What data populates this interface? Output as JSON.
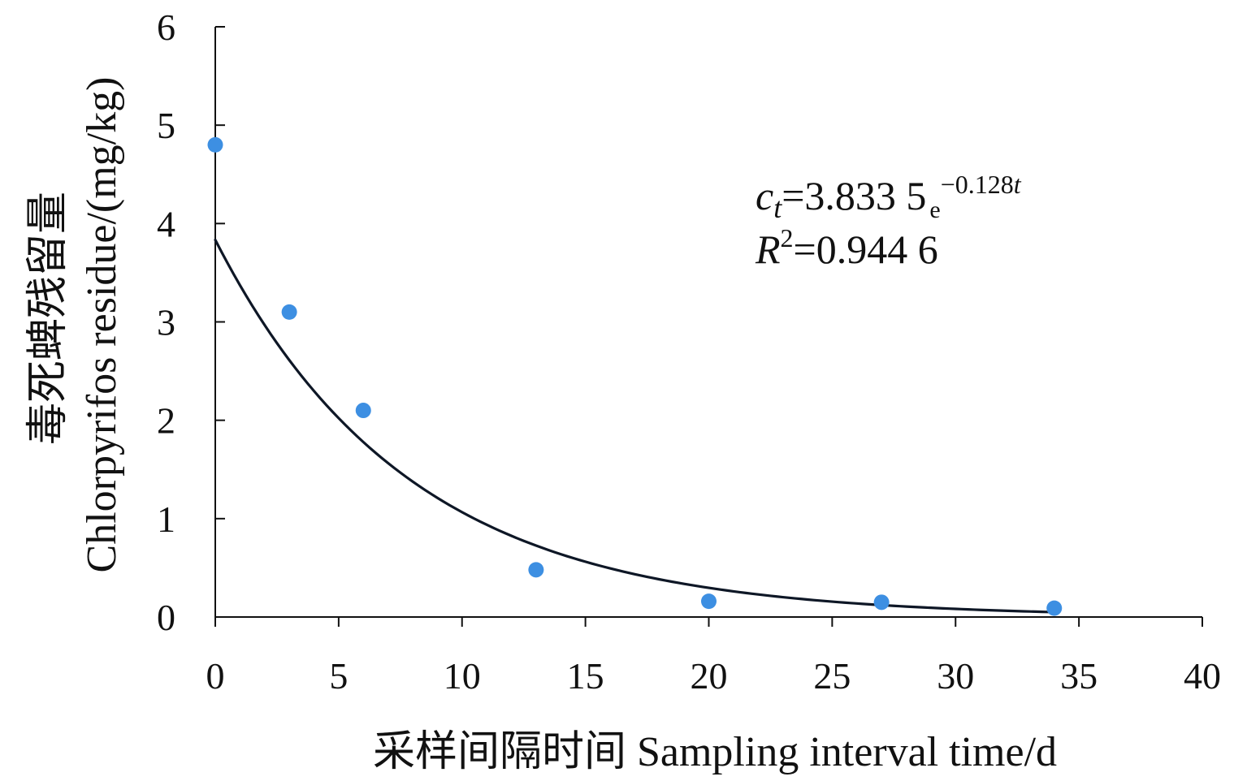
{
  "chart_data": {
    "type": "scatter",
    "title": "",
    "xlabel": "采样间隔时间 Sampling interval time/d",
    "ylabel": [
      "毒死蜱残留量",
      "Chlorpyrifos residue/(mg/kg)"
    ],
    "xlim": [
      0,
      40
    ],
    "ylim": [
      0,
      6
    ],
    "xticks": [
      0,
      5,
      10,
      15,
      20,
      25,
      30,
      35,
      40
    ],
    "yticks": [
      0,
      1,
      2,
      3,
      4,
      5,
      6
    ],
    "series": [
      {
        "x": [
          0,
          3,
          6,
          13,
          20,
          27,
          34
        ],
        "y": [
          4.8,
          3.1,
          2.1,
          0.48,
          0.16,
          0.15,
          0.09
        ],
        "color": "#3d8fe2"
      }
    ],
    "fit": {
      "a": 3.8335,
      "k": -0.128,
      "x_range": [
        0,
        34
      ],
      "color": "#0e1726"
    },
    "annotations": {
      "equation": {
        "var": "c",
        "sub": "t",
        "eq": "=3.833 5",
        "base": "e",
        "exp": "−0.128",
        "exp_var": "t"
      },
      "r_squared": {
        "var": "R",
        "sup": "2",
        "eq": "=0.944 6"
      }
    }
  }
}
